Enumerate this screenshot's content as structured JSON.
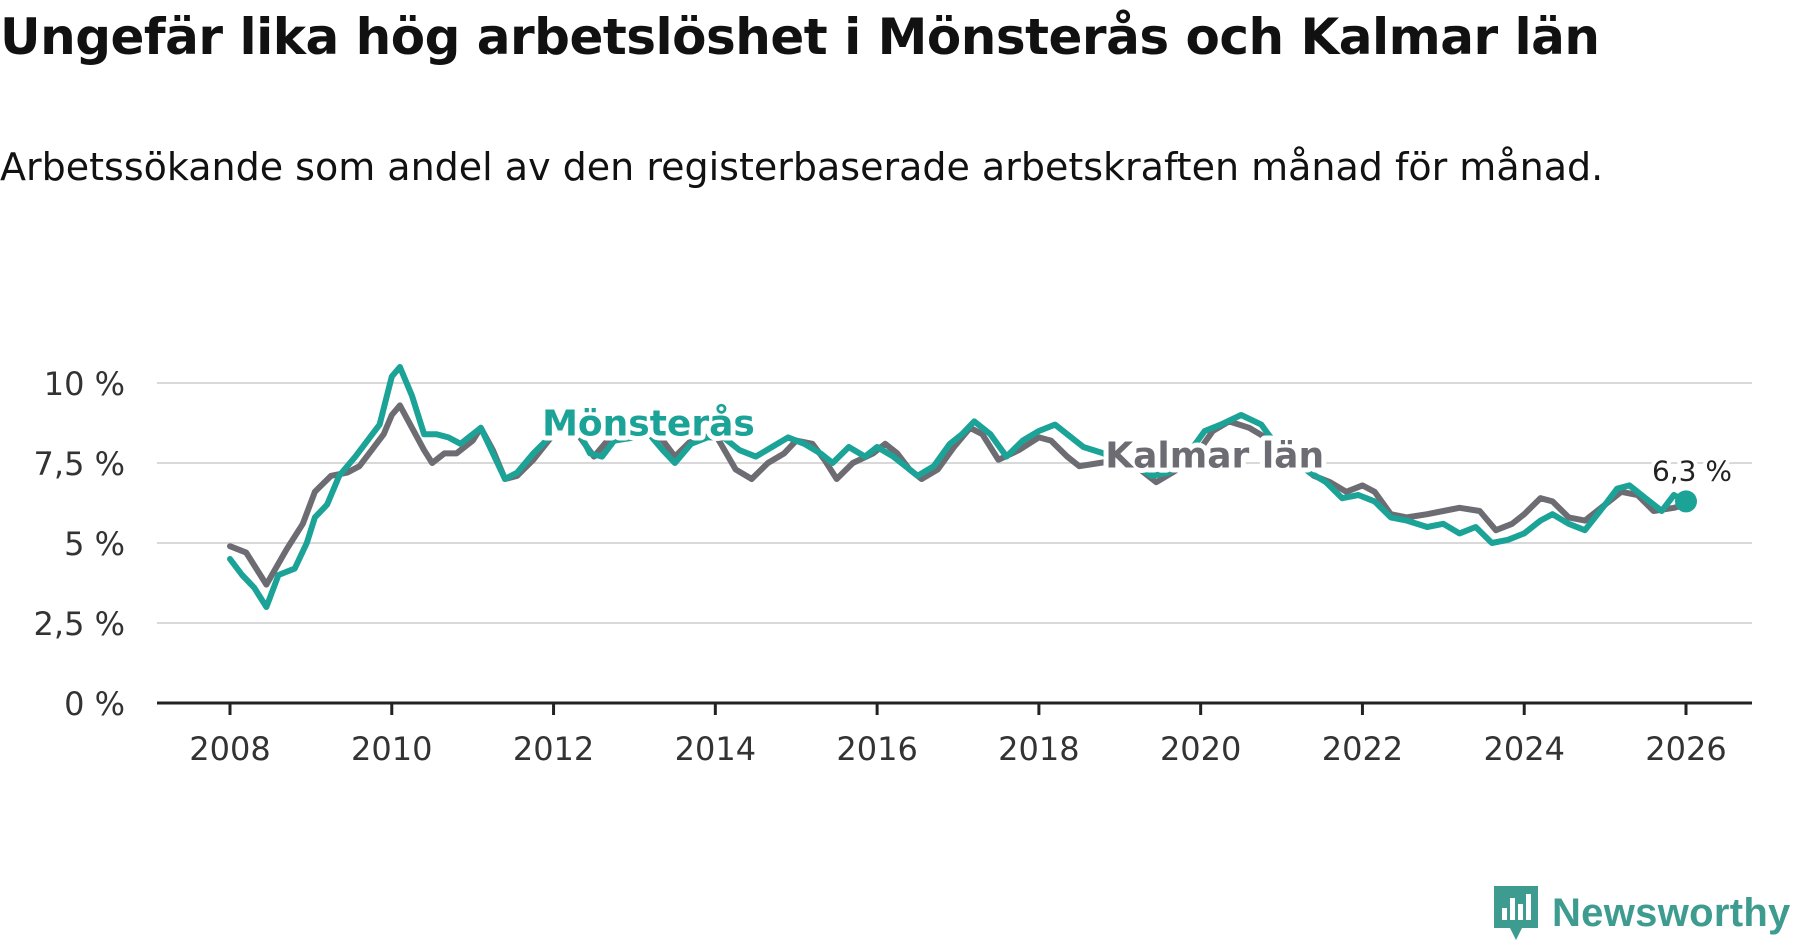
{
  "title": "Ungefär lika hög arbetslöshet i Mönsterås och Kalmar län",
  "subtitle": "Arbetssökande som andel av den registerbaserade arbetskraften månad för månad.",
  "brand": {
    "name": "Newsworthy",
    "icon": "newsworthy-logo-icon",
    "color": "#3d9c8f"
  },
  "chart_data": {
    "type": "line",
    "title": "Ungefär lika hög arbetslöshet i Mönsterås och Kalmar län",
    "xlabel": "",
    "ylabel": "",
    "xlim": [
      2008,
      2026
    ],
    "ylim": [
      0,
      10
    ],
    "x_ticks": [
      2008,
      2010,
      2012,
      2014,
      2016,
      2018,
      2020,
      2022,
      2024,
      2026
    ],
    "x_tick_labels": [
      "2008",
      "2010",
      "2012",
      "2014",
      "2016",
      "2018",
      "2020",
      "2022",
      "2024",
      "2026"
    ],
    "y_ticks": [
      0,
      2.5,
      5,
      7.5,
      10
    ],
    "y_tick_labels": [
      "0 %",
      "2,5 %",
      "5 %",
      "7,5 %",
      "10 %"
    ],
    "grid": true,
    "series": [
      {
        "name": "Kalmar län",
        "color": "#6e6c73",
        "points": [
          [
            2008.0,
            4.9
          ],
          [
            2008.2,
            4.7
          ],
          [
            2008.45,
            3.7
          ],
          [
            2008.7,
            4.8
          ],
          [
            2008.9,
            5.6
          ],
          [
            2009.05,
            6.6
          ],
          [
            2009.25,
            7.1
          ],
          [
            2009.45,
            7.2
          ],
          [
            2009.6,
            7.4
          ],
          [
            2009.75,
            7.9
          ],
          [
            2009.9,
            8.4
          ],
          [
            2010.0,
            9.0
          ],
          [
            2010.1,
            9.3
          ],
          [
            2010.25,
            8.6
          ],
          [
            2010.4,
            7.9
          ],
          [
            2010.5,
            7.5
          ],
          [
            2010.65,
            7.8
          ],
          [
            2010.8,
            7.8
          ],
          [
            2011.0,
            8.2
          ],
          [
            2011.1,
            8.6
          ],
          [
            2011.25,
            7.9
          ],
          [
            2011.4,
            7.0
          ],
          [
            2011.55,
            7.1
          ],
          [
            2011.75,
            7.6
          ],
          [
            2012.0,
            8.4
          ],
          [
            2012.15,
            8.8
          ],
          [
            2012.3,
            8.4
          ],
          [
            2012.5,
            7.7
          ],
          [
            2012.7,
            8.3
          ],
          [
            2013.0,
            8.3
          ],
          [
            2013.2,
            8.5
          ],
          [
            2013.35,
            8.2
          ],
          [
            2013.5,
            7.7
          ],
          [
            2013.7,
            8.2
          ],
          [
            2014.0,
            8.4
          ],
          [
            2014.25,
            7.3
          ],
          [
            2014.45,
            7.0
          ],
          [
            2014.65,
            7.5
          ],
          [
            2014.85,
            7.8
          ],
          [
            2015.0,
            8.2
          ],
          [
            2015.2,
            8.1
          ],
          [
            2015.35,
            7.6
          ],
          [
            2015.5,
            7.0
          ],
          [
            2015.7,
            7.5
          ],
          [
            2015.95,
            7.8
          ],
          [
            2016.1,
            8.1
          ],
          [
            2016.25,
            7.8
          ],
          [
            2016.4,
            7.3
          ],
          [
            2016.55,
            7.0
          ],
          [
            2016.75,
            7.3
          ],
          [
            2016.95,
            8.0
          ],
          [
            2017.15,
            8.6
          ],
          [
            2017.3,
            8.4
          ],
          [
            2017.5,
            7.6
          ],
          [
            2017.75,
            7.9
          ],
          [
            2018.0,
            8.3
          ],
          [
            2018.15,
            8.2
          ],
          [
            2018.35,
            7.7
          ],
          [
            2018.5,
            7.4
          ],
          [
            2018.75,
            7.5
          ],
          [
            2019.0,
            7.6
          ],
          [
            2019.25,
            7.3
          ],
          [
            2019.45,
            6.9
          ],
          [
            2019.65,
            7.2
          ],
          [
            2019.9,
            7.6
          ],
          [
            2020.15,
            8.5
          ],
          [
            2020.35,
            8.8
          ],
          [
            2020.6,
            8.6
          ],
          [
            2020.8,
            8.3
          ],
          [
            2021.0,
            7.8
          ],
          [
            2021.2,
            7.5
          ],
          [
            2021.4,
            7.1
          ],
          [
            2021.6,
            6.9
          ],
          [
            2021.8,
            6.6
          ],
          [
            2022.0,
            6.8
          ],
          [
            2022.15,
            6.6
          ],
          [
            2022.35,
            5.9
          ],
          [
            2022.55,
            5.8
          ],
          [
            2022.8,
            5.9
          ],
          [
            2023.0,
            6.0
          ],
          [
            2023.2,
            6.1
          ],
          [
            2023.45,
            6.0
          ],
          [
            2023.65,
            5.4
          ],
          [
            2023.85,
            5.6
          ],
          [
            2024.0,
            5.9
          ],
          [
            2024.2,
            6.4
          ],
          [
            2024.35,
            6.3
          ],
          [
            2024.55,
            5.8
          ],
          [
            2024.75,
            5.7
          ],
          [
            2025.0,
            6.2
          ],
          [
            2025.2,
            6.6
          ],
          [
            2025.4,
            6.5
          ],
          [
            2025.6,
            6.0
          ],
          [
            2025.85,
            6.1
          ],
          [
            2026.0,
            6.2
          ]
        ]
      },
      {
        "name": "Mönsterås",
        "color": "#1aa396",
        "points": [
          [
            2008.0,
            4.5
          ],
          [
            2008.15,
            4.0
          ],
          [
            2008.3,
            3.6
          ],
          [
            2008.45,
            3.0
          ],
          [
            2008.6,
            4.0
          ],
          [
            2008.8,
            4.2
          ],
          [
            2008.95,
            5.0
          ],
          [
            2009.05,
            5.8
          ],
          [
            2009.2,
            6.2
          ],
          [
            2009.35,
            7.1
          ],
          [
            2009.55,
            7.7
          ],
          [
            2009.7,
            8.2
          ],
          [
            2009.85,
            8.7
          ],
          [
            2010.0,
            10.2
          ],
          [
            2010.1,
            10.5
          ],
          [
            2010.25,
            9.6
          ],
          [
            2010.4,
            8.4
          ],
          [
            2010.55,
            8.4
          ],
          [
            2010.7,
            8.3
          ],
          [
            2010.85,
            8.1
          ],
          [
            2011.0,
            8.4
          ],
          [
            2011.1,
            8.6
          ],
          [
            2011.25,
            7.8
          ],
          [
            2011.4,
            7.0
          ],
          [
            2011.55,
            7.2
          ],
          [
            2011.75,
            7.8
          ],
          [
            2011.95,
            8.3
          ],
          [
            2012.1,
            9.0
          ],
          [
            2012.25,
            8.8
          ],
          [
            2012.45,
            7.8
          ],
          [
            2012.6,
            7.7
          ],
          [
            2012.75,
            8.2
          ],
          [
            2013.0,
            8.3
          ],
          [
            2013.15,
            8.5
          ],
          [
            2013.35,
            7.9
          ],
          [
            2013.5,
            7.5
          ],
          [
            2013.7,
            8.1
          ],
          [
            2013.9,
            8.3
          ],
          [
            2014.1,
            8.3
          ],
          [
            2014.3,
            7.9
          ],
          [
            2014.5,
            7.7
          ],
          [
            2014.7,
            8.0
          ],
          [
            2014.9,
            8.3
          ],
          [
            2015.1,
            8.1
          ],
          [
            2015.3,
            7.8
          ],
          [
            2015.45,
            7.5
          ],
          [
            2015.65,
            8.0
          ],
          [
            2015.85,
            7.7
          ],
          [
            2016.0,
            8.0
          ],
          [
            2016.2,
            7.7
          ],
          [
            2016.35,
            7.4
          ],
          [
            2016.5,
            7.1
          ],
          [
            2016.7,
            7.4
          ],
          [
            2016.9,
            8.1
          ],
          [
            2017.05,
            8.4
          ],
          [
            2017.2,
            8.8
          ],
          [
            2017.4,
            8.4
          ],
          [
            2017.6,
            7.7
          ],
          [
            2017.8,
            8.2
          ],
          [
            2018.0,
            8.5
          ],
          [
            2018.2,
            8.7
          ],
          [
            2018.4,
            8.3
          ],
          [
            2018.55,
            8.0
          ],
          [
            2018.8,
            7.8
          ],
          [
            2019.0,
            7.5
          ],
          [
            2019.2,
            7.4
          ],
          [
            2019.4,
            7.1
          ],
          [
            2019.6,
            7.2
          ],
          [
            2019.85,
            7.8
          ],
          [
            2020.05,
            8.5
          ],
          [
            2020.25,
            8.7
          ],
          [
            2020.5,
            9.0
          ],
          [
            2020.75,
            8.7
          ],
          [
            2020.95,
            8.0
          ],
          [
            2021.15,
            7.6
          ],
          [
            2021.35,
            7.2
          ],
          [
            2021.55,
            6.9
          ],
          [
            2021.75,
            6.4
          ],
          [
            2021.95,
            6.5
          ],
          [
            2022.15,
            6.3
          ],
          [
            2022.35,
            5.8
          ],
          [
            2022.55,
            5.7
          ],
          [
            2022.8,
            5.5
          ],
          [
            2023.0,
            5.6
          ],
          [
            2023.2,
            5.3
          ],
          [
            2023.4,
            5.5
          ],
          [
            2023.6,
            5.0
          ],
          [
            2023.8,
            5.1
          ],
          [
            2024.0,
            5.3
          ],
          [
            2024.2,
            5.7
          ],
          [
            2024.35,
            5.9
          ],
          [
            2024.55,
            5.6
          ],
          [
            2024.75,
            5.4
          ],
          [
            2025.0,
            6.2
          ],
          [
            2025.15,
            6.7
          ],
          [
            2025.3,
            6.8
          ],
          [
            2025.5,
            6.4
          ],
          [
            2025.7,
            6.0
          ],
          [
            2025.85,
            6.5
          ],
          [
            2026.0,
            6.3
          ]
        ]
      }
    ],
    "series_labels": [
      {
        "series": "Mönsterås",
        "text": "Mönsterås",
        "x": 2013.0,
        "y": 8.8
      },
      {
        "series": "Kalmar län",
        "text": "Kalmar län",
        "x": 2020.0,
        "y": 7.8
      }
    ],
    "end_label": {
      "series": "Mönsterås",
      "text": "6,3 %",
      "x": 2026.0,
      "y": 6.3
    }
  }
}
